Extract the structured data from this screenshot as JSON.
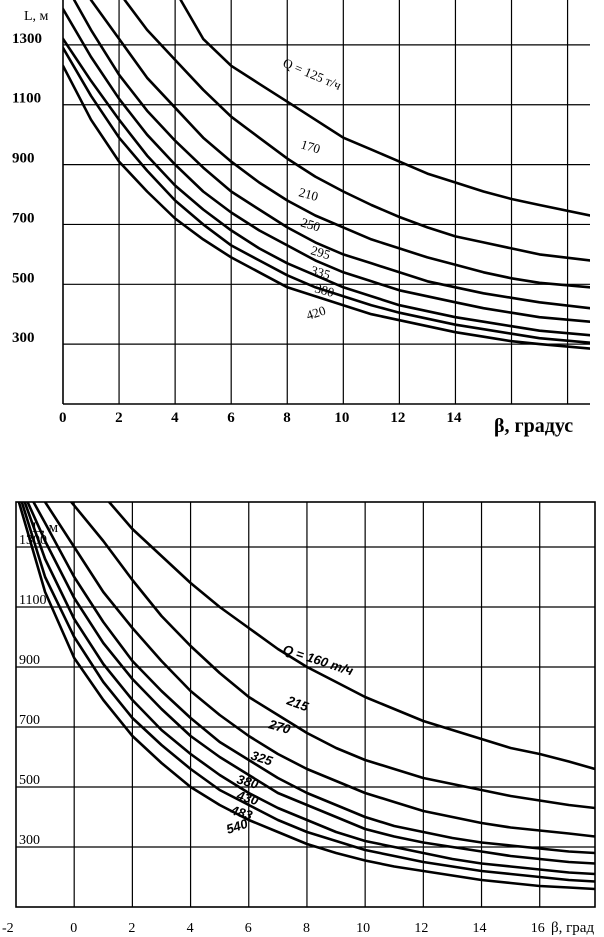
{
  "chart_data": [
    {
      "type": "line",
      "xlabel": "β, градус",
      "ylabel": "L, м",
      "xlim": [
        0,
        18.8
      ],
      "ylim": [
        100,
        1450
      ],
      "x_ticks": [
        0,
        2,
        4,
        6,
        8,
        10,
        12,
        14
      ],
      "y_ticks": [
        300,
        500,
        700,
        900,
        1100,
        1300
      ],
      "grid": true,
      "series": [
        {
          "name": "Q = 125 т/ч",
          "x": [
            4.2,
            5,
            6,
            7,
            8,
            9,
            10,
            11,
            12,
            13,
            14,
            15,
            16,
            17,
            18.8
          ],
          "values": [
            1450,
            1320,
            1230,
            1170,
            1110,
            1050,
            990,
            950,
            910,
            870,
            840,
            810,
            785,
            765,
            730
          ]
        },
        {
          "name": "170",
          "x": [
            2.2,
            3,
            4,
            5,
            6,
            7,
            8,
            9,
            10,
            11,
            12,
            13,
            14,
            15,
            16,
            17,
            18.8
          ],
          "values": [
            1450,
            1350,
            1250,
            1150,
            1060,
            990,
            920,
            860,
            810,
            765,
            725,
            690,
            660,
            640,
            620,
            600,
            580
          ]
        },
        {
          "name": "210",
          "x": [
            1,
            2,
            3,
            4,
            5,
            6,
            7,
            8,
            9,
            10,
            11,
            12,
            13,
            14,
            15,
            16,
            17,
            18.8
          ],
          "values": [
            1450,
            1320,
            1190,
            1090,
            990,
            910,
            840,
            780,
            730,
            690,
            650,
            620,
            590,
            565,
            540,
            520,
            505,
            490
          ]
        },
        {
          "name": "250",
          "x": [
            0.4,
            1,
            2,
            3,
            4,
            5,
            6,
            7,
            8,
            9,
            10,
            11,
            12,
            13,
            14,
            15,
            16,
            17,
            18.8
          ],
          "values": [
            1450,
            1350,
            1200,
            1080,
            980,
            890,
            810,
            750,
            690,
            640,
            600,
            570,
            540,
            510,
            490,
            470,
            455,
            440,
            420
          ]
        },
        {
          "name": "295",
          "x": [
            0,
            1,
            2,
            3,
            4,
            5,
            6,
            7,
            8,
            9,
            10,
            11,
            12,
            13,
            14,
            15,
            16,
            17,
            18.8
          ],
          "values": [
            1420,
            1260,
            1120,
            1000,
            900,
            810,
            740,
            680,
            630,
            580,
            540,
            510,
            480,
            460,
            440,
            420,
            405,
            390,
            375
          ]
        },
        {
          "name": "335",
          "x": [
            0,
            1,
            2,
            3,
            4,
            5,
            6,
            7,
            8,
            9,
            10,
            11,
            12,
            13,
            14,
            15,
            16,
            17,
            18.8
          ],
          "values": [
            1320,
            1180,
            1050,
            930,
            830,
            750,
            680,
            620,
            570,
            530,
            490,
            460,
            430,
            410,
            390,
            375,
            360,
            345,
            330
          ]
        },
        {
          "name": "380",
          "x": [
            0,
            1,
            2,
            3,
            4,
            5,
            6,
            7,
            8,
            9,
            10,
            11,
            12,
            13,
            14,
            15,
            16,
            17,
            18.8
          ],
          "values": [
            1290,
            1130,
            990,
            880,
            780,
            700,
            630,
            580,
            530,
            490,
            460,
            430,
            405,
            385,
            365,
            350,
            335,
            320,
            305
          ]
        },
        {
          "name": "420",
          "x": [
            0,
            1,
            2,
            3,
            4,
            5,
            6,
            7,
            8,
            9,
            10,
            11,
            12,
            13,
            14,
            15,
            16,
            17,
            18.8
          ],
          "values": [
            1230,
            1050,
            910,
            810,
            720,
            650,
            590,
            540,
            490,
            460,
            430,
            400,
            380,
            360,
            340,
            325,
            310,
            300,
            285
          ]
        }
      ]
    },
    {
      "type": "line",
      "xlabel": "β, град",
      "ylabel": "L, м",
      "xlim": [
        -2,
        17.9
      ],
      "ylim": [
        100,
        1450
      ],
      "x_ticks": [
        -2,
        0,
        2,
        4,
        6,
        8,
        10,
        12,
        14,
        16
      ],
      "y_ticks": [
        300,
        500,
        700,
        900,
        1100,
        1300
      ],
      "grid": true,
      "series": [
        {
          "name": "Q = 160 т/ч",
          "x": [
            1.2,
            2,
            3,
            4,
            5,
            6,
            7,
            8,
            9,
            10,
            11,
            12,
            13,
            14,
            15,
            16,
            17,
            17.9
          ],
          "values": [
            1450,
            1360,
            1270,
            1180,
            1100,
            1030,
            960,
            900,
            850,
            800,
            760,
            720,
            690,
            660,
            630,
            610,
            585,
            560
          ]
        },
        {
          "name": "215",
          "x": [
            -0.1,
            1,
            2,
            3,
            4,
            5,
            6,
            7,
            8,
            9,
            10,
            11,
            12,
            13,
            14,
            15,
            16,
            17,
            17.9
          ],
          "values": [
            1450,
            1320,
            1190,
            1070,
            970,
            880,
            800,
            740,
            680,
            630,
            590,
            560,
            530,
            510,
            490,
            470,
            455,
            440,
            430
          ]
        },
        {
          "name": "270",
          "x": [
            -1,
            0,
            1,
            2,
            3,
            4,
            5,
            6,
            7,
            8,
            9,
            10,
            11,
            12,
            13,
            14,
            15,
            16,
            17,
            17.9
          ],
          "values": [
            1450,
            1300,
            1150,
            1030,
            920,
            820,
            740,
            670,
            610,
            560,
            520,
            480,
            450,
            420,
            400,
            380,
            365,
            355,
            345,
            335
          ]
        },
        {
          "name": "325",
          "x": [
            -1.4,
            -1,
            0,
            1,
            2,
            3,
            4,
            5,
            6,
            7,
            8,
            9,
            10,
            11,
            12,
            13,
            14,
            15,
            16,
            17,
            17.9
          ],
          "values": [
            1450,
            1380,
            1200,
            1050,
            920,
            820,
            730,
            650,
            590,
            530,
            480,
            440,
            400,
            370,
            350,
            330,
            315,
            305,
            295,
            285,
            280
          ]
        },
        {
          "name": "380",
          "x": [
            -1.6,
            -1,
            0,
            1,
            2,
            3,
            4,
            5,
            6,
            7,
            8,
            9,
            10,
            11,
            12,
            13,
            14,
            15,
            16,
            17,
            17.9
          ],
          "values": [
            1450,
            1320,
            1130,
            980,
            860,
            760,
            670,
            600,
            540,
            480,
            440,
            400,
            360,
            335,
            315,
            300,
            285,
            270,
            260,
            250,
            245
          ]
        },
        {
          "name": "430",
          "x": [
            -1.7,
            -1,
            0,
            1,
            2,
            3,
            4,
            5,
            6,
            7,
            8,
            9,
            10,
            11,
            12,
            13,
            14,
            15,
            16,
            17,
            17.9
          ],
          "values": [
            1450,
            1260,
            1060,
            910,
            790,
            690,
            610,
            540,
            480,
            430,
            390,
            350,
            320,
            300,
            280,
            260,
            245,
            235,
            225,
            215,
            210
          ]
        },
        {
          "name": "483",
          "x": [
            -1.8,
            -1,
            0,
            1,
            2,
            3,
            4,
            5,
            6,
            7,
            8,
            9,
            10,
            11,
            12,
            13,
            14,
            15,
            16,
            17,
            17.9
          ],
          "values": [
            1450,
            1200,
            1000,
            850,
            730,
            640,
            560,
            490,
            440,
            390,
            350,
            320,
            290,
            270,
            250,
            235,
            220,
            210,
            200,
            190,
            185
          ]
        },
        {
          "name": "540",
          "x": [
            -1.9,
            -1,
            0,
            1,
            2,
            3,
            4,
            5,
            6,
            7,
            8,
            9,
            10,
            11,
            12,
            13,
            14,
            15,
            16,
            17,
            17.9
          ],
          "values": [
            1450,
            1150,
            930,
            790,
            670,
            580,
            500,
            440,
            390,
            350,
            310,
            280,
            255,
            235,
            220,
            205,
            190,
            180,
            170,
            165,
            160
          ]
        }
      ],
      "curve_labels": [
        "Q = 160 т/ч",
        "215",
        "270",
        "325",
        "380",
        "430",
        "483",
        "540"
      ]
    }
  ]
}
